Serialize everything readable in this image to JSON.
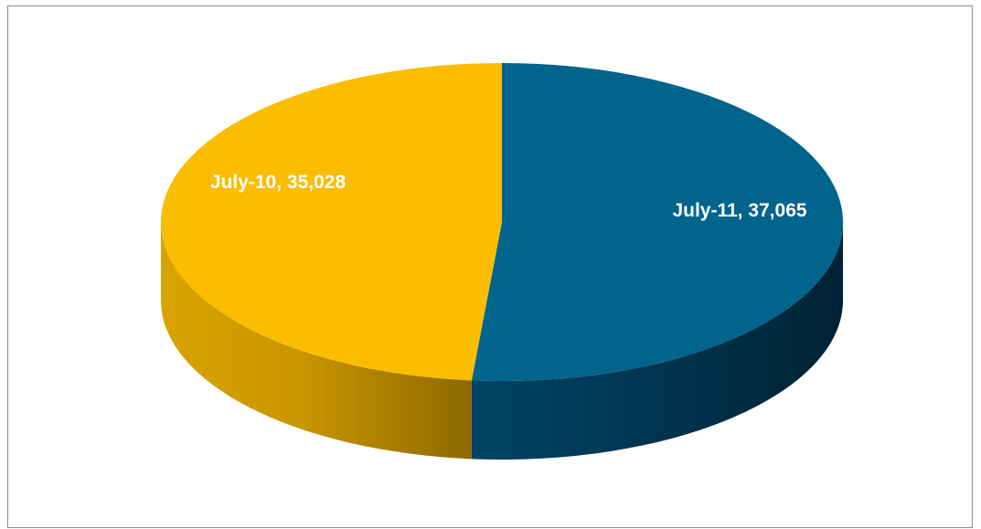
{
  "chart_data": {
    "type": "pie",
    "title": "",
    "slices": [
      {
        "category": "July-11",
        "value": 37065,
        "label": "July-11, 37,065",
        "color": "#00648c"
      },
      {
        "category": "July-10",
        "value": 35028,
        "label": "July-10, 35,028",
        "color": "#fbbd00"
      }
    ],
    "style": "3d",
    "legend": "none"
  }
}
